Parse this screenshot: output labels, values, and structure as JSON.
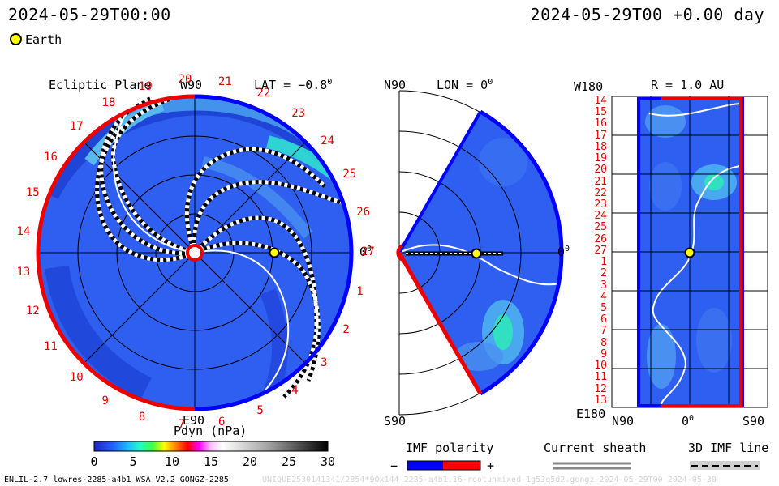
{
  "header": {
    "left_time": "2024-05-29T00:00",
    "right_time": "2024-05-29T00 +0.00 day"
  },
  "legend": {
    "earth_label": "Earth",
    "earth_color": "#ffff00"
  },
  "panels": {
    "ecliptic": {
      "title": "Ecliptic Plane",
      "lat_label": "LAT = −0.8",
      "lat_sup": "0",
      "top_label": "W90",
      "bottom_label": "E90",
      "right_label": "0",
      "right_sup": "0",
      "carrington_labels": [
        "19",
        "20",
        "21",
        "22",
        "23",
        "24",
        "25",
        "26",
        "27",
        "1",
        "2",
        "3",
        "4",
        "5",
        "6",
        "7",
        "8",
        "9",
        "10",
        "11",
        "12",
        "13",
        "14",
        "15",
        "16",
        "17",
        "18"
      ]
    },
    "meridional": {
      "top_label": "N90",
      "lon_label": "LON = 0",
      "lon_sup": "0",
      "bottom_label": "S90",
      "right_label": "0",
      "right_sup": "0"
    },
    "radial": {
      "top_left_label": "W180",
      "r_label": "R = 1.0 AU",
      "bottom_left_label": "E180",
      "bottom_labels": [
        "N90",
        "0",
        "S90"
      ],
      "bottom_mid_sup": "0",
      "rows": [
        "14",
        "15",
        "16",
        "17",
        "18",
        "19",
        "20",
        "21",
        "22",
        "23",
        "24",
        "25",
        "26",
        "27",
        "1",
        "2",
        "3",
        "4",
        "5",
        "6",
        "7",
        "8",
        "9",
        "10",
        "11",
        "12",
        "13"
      ]
    }
  },
  "colorbar": {
    "title": "Pdyn (nPa)",
    "ticks": [
      "0",
      "5",
      "10",
      "15",
      "20",
      "25",
      "30"
    ],
    "min": 0,
    "max": 30
  },
  "imf": {
    "title": "IMF polarity",
    "minus": "−",
    "plus": "+",
    "neg_color": "#0000ff",
    "pos_color": "#ff0000"
  },
  "sheath": {
    "title": "Current sheath"
  },
  "imf3d": {
    "title": "3D IMF line"
  },
  "footer": {
    "left": "ENLIL-2.7 lowres-2285-a4b1 WSA_V2.2 GONGZ-2285",
    "right": "UNIQUE2530141341/2854*90x144-2285-a4b1.16-rootunmixed-1g53q5d2.gongz-2024-05-29T00   2024-05-30"
  }
}
